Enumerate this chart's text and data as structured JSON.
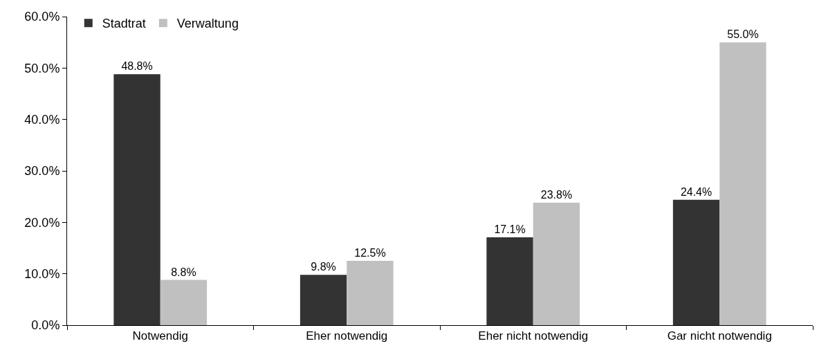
{
  "chart_data": {
    "type": "bar",
    "categories": [
      "Notwendig",
      "Eher notwendig",
      "Eher nicht notwendig",
      "Gar nicht notwendig"
    ],
    "series": [
      {
        "name": "Stadtrat",
        "color": "#333333",
        "values": [
          48.8,
          9.8,
          17.1,
          24.4
        ],
        "value_labels": [
          "48.8%",
          "9.8%",
          "17.1%",
          "24.4%"
        ]
      },
      {
        "name": "Verwaltung",
        "color": "#c0c0c0",
        "values": [
          8.8,
          12.5,
          23.8,
          55.0
        ],
        "value_labels": [
          "8.8%",
          "12.5%",
          "23.8%",
          "55.0%"
        ]
      }
    ],
    "ylim": [
      0,
      60
    ],
    "yticks": [
      {
        "value": 0,
        "label": "0.0%"
      },
      {
        "value": 10,
        "label": "10.0%"
      },
      {
        "value": 20,
        "label": "20.0%"
      },
      {
        "value": 30,
        "label": "30.0%"
      },
      {
        "value": 40,
        "label": "40.0%"
      },
      {
        "value": 50,
        "label": "50.0%"
      },
      {
        "value": 60,
        "label": "60.0%"
      }
    ],
    "grid": false,
    "legend": "top left"
  }
}
